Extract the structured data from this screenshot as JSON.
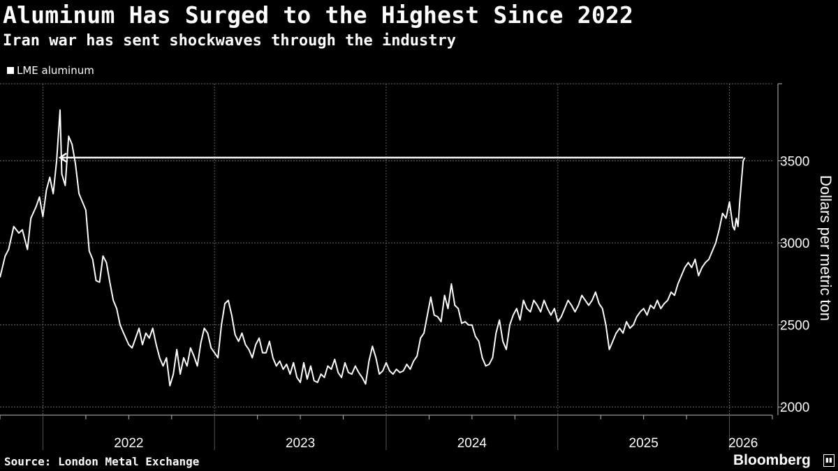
{
  "header": {
    "title": "Aluminum Has Surged to the Highest Since 2022",
    "subtitle": "Iran war has sent shockwaves through the industry"
  },
  "legend": {
    "label": "LME aluminum",
    "color": "#ffffff"
  },
  "footer": {
    "source": "Source: London Metal Exchange",
    "brand": "Bloomberg"
  },
  "colors": {
    "background": "#000000",
    "line": "#ffffff",
    "grid": "#666666"
  },
  "chart_data": {
    "type": "line",
    "title": "Aluminum Has Surged to the Highest Since 2022",
    "subtitle": "Iran war has sent shockwaves through the industry",
    "ylabel": "Dollars per metric ton",
    "xlabel": "",
    "ylim": [
      1950,
      3970
    ],
    "yticks": [
      2000,
      2500,
      3000,
      3500
    ],
    "xlim": [
      2021.75,
      2026.25
    ],
    "year_boundaries": [
      2022,
      2023,
      2024,
      2025,
      2026
    ],
    "xtick_labels": [
      {
        "label": "2022",
        "x": 2022.5
      },
      {
        "label": "2023",
        "x": 2023.5
      },
      {
        "label": "2024",
        "x": 2024.5
      },
      {
        "label": "2025",
        "x": 2025.5
      },
      {
        "label": "2026",
        "x": 2026.08
      }
    ],
    "legend_position": "top-left",
    "annotation": {
      "type": "arrow",
      "from_x": 2026.08,
      "to_x": 2022.1,
      "y": 3520
    },
    "series": [
      {
        "name": "LME aluminum",
        "points": [
          [
            2021.75,
            2790
          ],
          [
            2021.78,
            2920
          ],
          [
            2021.8,
            2960
          ],
          [
            2021.83,
            3100
          ],
          [
            2021.86,
            3060
          ],
          [
            2021.88,
            3080
          ],
          [
            2021.91,
            2960
          ],
          [
            2021.93,
            3150
          ],
          [
            2021.96,
            3220
          ],
          [
            2021.98,
            3280
          ],
          [
            2022.0,
            3160
          ],
          [
            2022.02,
            3320
          ],
          [
            2022.04,
            3400
          ],
          [
            2022.06,
            3300
          ],
          [
            2022.08,
            3500
          ],
          [
            2022.1,
            3810
          ],
          [
            2022.11,
            3420
          ],
          [
            2022.13,
            3350
          ],
          [
            2022.15,
            3650
          ],
          [
            2022.17,
            3600
          ],
          [
            2022.19,
            3480
          ],
          [
            2022.21,
            3300
          ],
          [
            2022.23,
            3250
          ],
          [
            2022.25,
            3200
          ],
          [
            2022.27,
            2950
          ],
          [
            2022.29,
            2900
          ],
          [
            2022.31,
            2770
          ],
          [
            2022.33,
            2760
          ],
          [
            2022.35,
            2920
          ],
          [
            2022.37,
            2880
          ],
          [
            2022.39,
            2760
          ],
          [
            2022.41,
            2650
          ],
          [
            2022.43,
            2600
          ],
          [
            2022.45,
            2500
          ],
          [
            2022.47,
            2450
          ],
          [
            2022.5,
            2380
          ],
          [
            2022.52,
            2360
          ],
          [
            2022.54,
            2420
          ],
          [
            2022.56,
            2480
          ],
          [
            2022.58,
            2380
          ],
          [
            2022.6,
            2450
          ],
          [
            2022.62,
            2420
          ],
          [
            2022.64,
            2480
          ],
          [
            2022.66,
            2380
          ],
          [
            2022.68,
            2300
          ],
          [
            2022.7,
            2250
          ],
          [
            2022.72,
            2300
          ],
          [
            2022.74,
            2130
          ],
          [
            2022.76,
            2200
          ],
          [
            2022.78,
            2350
          ],
          [
            2022.8,
            2200
          ],
          [
            2022.82,
            2300
          ],
          [
            2022.84,
            2250
          ],
          [
            2022.86,
            2360
          ],
          [
            2022.88,
            2310
          ],
          [
            2022.9,
            2250
          ],
          [
            2022.92,
            2390
          ],
          [
            2022.94,
            2480
          ],
          [
            2022.96,
            2450
          ],
          [
            2022.98,
            2360
          ],
          [
            2023.0,
            2330
          ],
          [
            2023.02,
            2300
          ],
          [
            2023.04,
            2500
          ],
          [
            2023.06,
            2630
          ],
          [
            2023.08,
            2650
          ],
          [
            2023.1,
            2560
          ],
          [
            2023.12,
            2440
          ],
          [
            2023.14,
            2400
          ],
          [
            2023.16,
            2450
          ],
          [
            2023.18,
            2380
          ],
          [
            2023.2,
            2350
          ],
          [
            2023.22,
            2300
          ],
          [
            2023.24,
            2380
          ],
          [
            2023.26,
            2420
          ],
          [
            2023.28,
            2330
          ],
          [
            2023.3,
            2330
          ],
          [
            2023.32,
            2400
          ],
          [
            2023.34,
            2300
          ],
          [
            2023.36,
            2250
          ],
          [
            2023.38,
            2280
          ],
          [
            2023.4,
            2230
          ],
          [
            2023.42,
            2260
          ],
          [
            2023.44,
            2200
          ],
          [
            2023.46,
            2270
          ],
          [
            2023.48,
            2180
          ],
          [
            2023.5,
            2150
          ],
          [
            2023.52,
            2270
          ],
          [
            2023.54,
            2170
          ],
          [
            2023.56,
            2250
          ],
          [
            2023.58,
            2160
          ],
          [
            2023.6,
            2150
          ],
          [
            2023.62,
            2200
          ],
          [
            2023.64,
            2180
          ],
          [
            2023.66,
            2250
          ],
          [
            2023.68,
            2230
          ],
          [
            2023.7,
            2290
          ],
          [
            2023.72,
            2210
          ],
          [
            2023.74,
            2180
          ],
          [
            2023.76,
            2270
          ],
          [
            2023.78,
            2210
          ],
          [
            2023.8,
            2200
          ],
          [
            2023.82,
            2250
          ],
          [
            2023.84,
            2210
          ],
          [
            2023.86,
            2180
          ],
          [
            2023.88,
            2140
          ],
          [
            2023.9,
            2280
          ],
          [
            2023.92,
            2370
          ],
          [
            2023.94,
            2300
          ],
          [
            2023.96,
            2200
          ],
          [
            2023.98,
            2220
          ],
          [
            2024.0,
            2270
          ],
          [
            2024.02,
            2220
          ],
          [
            2024.04,
            2200
          ],
          [
            2024.06,
            2230
          ],
          [
            2024.08,
            2210
          ],
          [
            2024.1,
            2220
          ],
          [
            2024.12,
            2260
          ],
          [
            2024.14,
            2230
          ],
          [
            2024.16,
            2280
          ],
          [
            2024.18,
            2310
          ],
          [
            2024.2,
            2420
          ],
          [
            2024.22,
            2450
          ],
          [
            2024.24,
            2560
          ],
          [
            2024.26,
            2670
          ],
          [
            2024.28,
            2560
          ],
          [
            2024.3,
            2550
          ],
          [
            2024.32,
            2520
          ],
          [
            2024.34,
            2680
          ],
          [
            2024.36,
            2600
          ],
          [
            2024.38,
            2750
          ],
          [
            2024.4,
            2620
          ],
          [
            2024.42,
            2600
          ],
          [
            2024.44,
            2510
          ],
          [
            2024.46,
            2520
          ],
          [
            2024.48,
            2500
          ],
          [
            2024.5,
            2500
          ],
          [
            2024.52,
            2430
          ],
          [
            2024.54,
            2400
          ],
          [
            2024.56,
            2300
          ],
          [
            2024.58,
            2250
          ],
          [
            2024.6,
            2260
          ],
          [
            2024.62,
            2300
          ],
          [
            2024.64,
            2450
          ],
          [
            2024.66,
            2530
          ],
          [
            2024.68,
            2400
          ],
          [
            2024.7,
            2350
          ],
          [
            2024.72,
            2500
          ],
          [
            2024.74,
            2560
          ],
          [
            2024.76,
            2600
          ],
          [
            2024.78,
            2530
          ],
          [
            2024.8,
            2650
          ],
          [
            2024.82,
            2600
          ],
          [
            2024.84,
            2580
          ],
          [
            2024.86,
            2650
          ],
          [
            2024.88,
            2620
          ],
          [
            2024.9,
            2580
          ],
          [
            2024.92,
            2650
          ],
          [
            2024.94,
            2600
          ],
          [
            2024.96,
            2560
          ],
          [
            2024.98,
            2600
          ],
          [
            2025.0,
            2520
          ],
          [
            2025.02,
            2550
          ],
          [
            2025.04,
            2600
          ],
          [
            2025.06,
            2650
          ],
          [
            2025.08,
            2620
          ],
          [
            2025.1,
            2580
          ],
          [
            2025.12,
            2620
          ],
          [
            2025.14,
            2680
          ],
          [
            2025.16,
            2650
          ],
          [
            2025.18,
            2620
          ],
          [
            2025.2,
            2650
          ],
          [
            2025.22,
            2700
          ],
          [
            2025.24,
            2630
          ],
          [
            2025.26,
            2600
          ],
          [
            2025.28,
            2500
          ],
          [
            2025.3,
            2350
          ],
          [
            2025.32,
            2400
          ],
          [
            2025.34,
            2450
          ],
          [
            2025.36,
            2480
          ],
          [
            2025.38,
            2450
          ],
          [
            2025.4,
            2520
          ],
          [
            2025.42,
            2480
          ],
          [
            2025.44,
            2500
          ],
          [
            2025.46,
            2550
          ],
          [
            2025.48,
            2580
          ],
          [
            2025.5,
            2600
          ],
          [
            2025.52,
            2560
          ],
          [
            2025.54,
            2620
          ],
          [
            2025.56,
            2600
          ],
          [
            2025.58,
            2650
          ],
          [
            2025.6,
            2600
          ],
          [
            2025.62,
            2630
          ],
          [
            2025.64,
            2650
          ],
          [
            2025.66,
            2700
          ],
          [
            2025.68,
            2680
          ],
          [
            2025.7,
            2750
          ],
          [
            2025.72,
            2800
          ],
          [
            2025.74,
            2850
          ],
          [
            2025.76,
            2880
          ],
          [
            2025.78,
            2850
          ],
          [
            2025.8,
            2900
          ],
          [
            2025.82,
            2800
          ],
          [
            2025.84,
            2850
          ],
          [
            2025.86,
            2880
          ],
          [
            2025.88,
            2900
          ],
          [
            2025.9,
            2950
          ],
          [
            2025.92,
            3000
          ],
          [
            2025.94,
            3080
          ],
          [
            2025.96,
            3180
          ],
          [
            2025.98,
            3150
          ],
          [
            2026.0,
            3250
          ],
          [
            2026.02,
            3100
          ],
          [
            2026.03,
            3080
          ],
          [
            2026.04,
            3150
          ],
          [
            2026.05,
            3100
          ],
          [
            2026.06,
            3250
          ],
          [
            2026.07,
            3380
          ],
          [
            2026.08,
            3500
          ],
          [
            2026.09,
            3520
          ]
        ]
      }
    ]
  }
}
